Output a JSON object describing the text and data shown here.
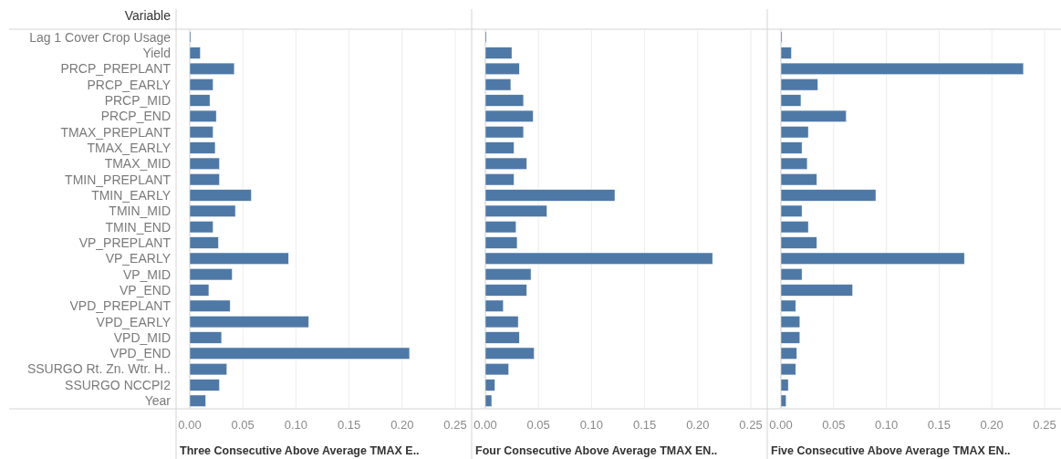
{
  "chart_data": [
    {
      "type": "bar",
      "orientation": "horizontal",
      "ylabel": "Variable",
      "xlabel": "Three Consecutive Above Average TMAX E..",
      "categories": [
        "Lag 1 Cover Crop Usage",
        "Yield",
        "PRCP_PREPLANT",
        "PRCP_EARLY",
        "PRCP_MID",
        "PRCP_END",
        "TMAX_PREPLANT",
        "TMAX_EARLY",
        "TMAX_MID",
        "TMIN_PREPLANT",
        "TMIN_EARLY",
        "TMIN_MID",
        "TMIN_END",
        "VP_PREPLANT",
        "VP_EARLY",
        "VP_MID",
        "VP_END",
        "VPD_PREPLANT",
        "VPD_EARLY",
        "VPD_MID",
        "VPD_END",
        "SSURGO Rt. Zn. Wtr. H..",
        "SSURGO NCCPI2",
        "Year"
      ],
      "values": [
        0.001,
        0.01,
        0.042,
        0.022,
        0.019,
        0.025,
        0.022,
        0.024,
        0.028,
        0.028,
        0.058,
        0.043,
        0.022,
        0.027,
        0.093,
        0.04,
        0.018,
        0.038,
        0.112,
        0.03,
        0.207,
        0.035,
        0.028,
        0.015
      ],
      "color": "#4e79a7",
      "xlim": [
        0,
        0.25
      ],
      "xticks": [
        {
          "value": 0,
          "label": "0.00"
        },
        0.05,
        {
          "value": 0.1,
          "label": "0.10"
        },
        0.15,
        {
          "value": 0.2,
          "label": "0.20"
        },
        0.25
      ],
      "grid": "x"
    },
    {
      "type": "bar",
      "orientation": "horizontal",
      "xlabel": "Four Consecutive Above Average TMAX EN..",
      "tick_labels": "x",
      "categories": [
        null,
        null,
        null,
        null,
        null,
        null,
        null,
        null,
        null,
        null,
        null,
        null,
        null,
        null,
        null,
        null,
        null,
        null,
        null,
        null,
        null,
        null,
        null,
        null
      ],
      "values": [
        0.001,
        0.025,
        0.032,
        0.024,
        0.036,
        0.045,
        0.036,
        0.027,
        0.039,
        0.027,
        0.122,
        0.058,
        0.029,
        0.03,
        0.214,
        0.043,
        0.039,
        0.017,
        0.031,
        0.032,
        0.046,
        0.022,
        0.009,
        0.006
      ],
      "color": "#4e79a7",
      "xlim": [
        0,
        0.25
      ],
      "xticks": [
        {
          "value": 0,
          "label": "0.00"
        },
        0.05,
        {
          "value": 0.1,
          "label": "0.10"
        },
        0.15,
        {
          "value": 0.2,
          "label": "0.20"
        },
        0.25
      ],
      "grid": "x"
    },
    {
      "type": "bar",
      "orientation": "horizontal",
      "xlabel": "Five Consecutive Above Average TMAX EN..",
      "tick_labels": "x",
      "categories": [
        null,
        null,
        null,
        null,
        null,
        null,
        null,
        null,
        null,
        null,
        null,
        null,
        null,
        null,
        null,
        null,
        null,
        null,
        null,
        null,
        null,
        null,
        null,
        null
      ],
      "values": [
        0.001,
        0.01,
        0.23,
        0.035,
        0.019,
        0.062,
        0.026,
        0.02,
        0.025,
        0.034,
        0.09,
        0.02,
        0.026,
        0.034,
        0.174,
        0.02,
        0.068,
        0.014,
        0.018,
        0.018,
        0.015,
        0.014,
        0.007,
        0.005
      ],
      "color": "#4e79a7",
      "xlim": [
        0,
        0.25
      ],
      "xticks": [
        {
          "value": 0,
          "label": "0.00"
        },
        0.05,
        {
          "value": 0.1,
          "label": "0.10"
        },
        0.15,
        {
          "value": 0.2,
          "label": "0.20"
        },
        0.25
      ],
      "grid": "x"
    }
  ]
}
